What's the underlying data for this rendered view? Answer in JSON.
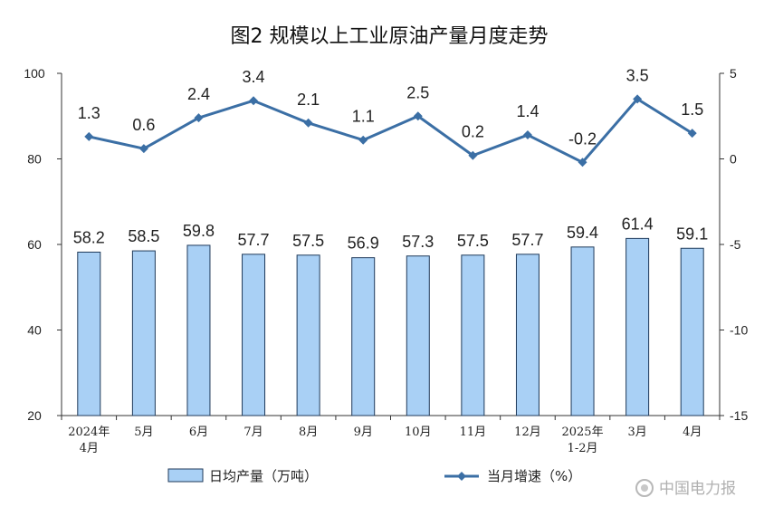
{
  "chart_data": {
    "type": "bar",
    "title": "图2  规模以上工业原油产量月度走势",
    "categories": [
      [
        "2024年",
        "4月"
      ],
      [
        "5月"
      ],
      [
        "6月"
      ],
      [
        "7月"
      ],
      [
        "8月"
      ],
      [
        "9月"
      ],
      [
        "10月"
      ],
      [
        "11月"
      ],
      [
        "12月"
      ],
      [
        "2025年",
        "1-2月"
      ],
      [
        "3月"
      ],
      [
        "4月"
      ]
    ],
    "series": [
      {
        "name": "日均产量（万吨）",
        "type": "bar",
        "axis": "left",
        "values": [
          58.2,
          58.5,
          59.8,
          57.7,
          57.5,
          56.9,
          57.3,
          57.5,
          57.7,
          59.4,
          61.4,
          59.1
        ]
      },
      {
        "name": "当月增速（%）",
        "type": "line",
        "axis": "right",
        "values": [
          1.3,
          0.6,
          2.4,
          3.4,
          2.1,
          1.1,
          2.5,
          0.2,
          1.4,
          -0.2,
          3.5,
          1.5
        ]
      }
    ],
    "y_left": {
      "min": 20,
      "max": 100,
      "ticks": [
        20,
        40,
        60,
        80,
        100
      ]
    },
    "y_right": {
      "min": -15,
      "max": 5,
      "ticks": [
        -15,
        -10,
        -5,
        0,
        5
      ]
    },
    "grid": false,
    "legend_position": "bottom",
    "colors": {
      "bar_fill": "#a9d0f5",
      "bar_stroke": "#1f3a5a",
      "line": "#3b6fa5",
      "axis": "#333333"
    }
  },
  "watermark": "中国电力报"
}
